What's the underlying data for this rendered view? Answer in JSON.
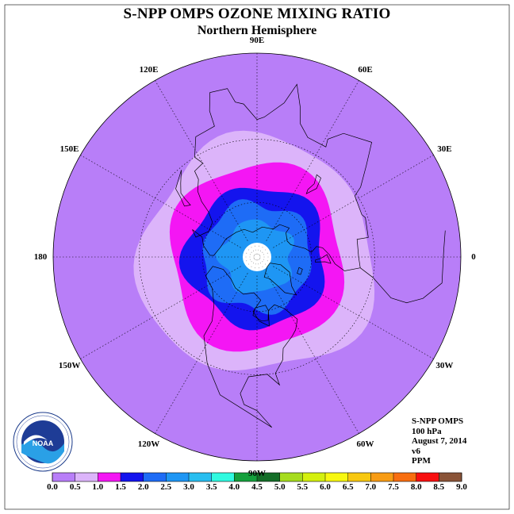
{
  "title": "S-NPP OMPS OZONE MIXING RATIO",
  "subtitle": "Northern Hemisphere",
  "longitude_labels": [
    {
      "text": "90E",
      "lon": 90
    },
    {
      "text": "60E",
      "lon": 60
    },
    {
      "text": "30E",
      "lon": 30
    },
    {
      "text": "0",
      "lon": 0
    },
    {
      "text": "30W",
      "lon": -30
    },
    {
      "text": "60W",
      "lon": -60
    },
    {
      "text": "90W",
      "lon": -90
    },
    {
      "text": "120W",
      "lon": -120
    },
    {
      "text": "150W",
      "lon": -150
    },
    {
      "text": "180",
      "lon": 180
    },
    {
      "text": "150E",
      "lon": 150
    },
    {
      "text": "120E",
      "lon": 120
    }
  ],
  "info": {
    "instrument": "S-NPP OMPS",
    "level": "100 hPa",
    "date": "August 7, 2014",
    "version": "v6",
    "units": "PPM"
  },
  "logo_text": "NOAA",
  "colorbar": {
    "ticks": [
      "0.0",
      "0.5",
      "1.0",
      "1.5",
      "2.0",
      "2.5",
      "3.0",
      "3.5",
      "4.0",
      "4.5",
      "5.0",
      "5.5",
      "6.0",
      "6.5",
      "7.0",
      "7.5",
      "8.0",
      "8.5",
      "9.0"
    ],
    "colors": [
      "#b87ef8",
      "#dcb4fa",
      "#f416f4",
      "#1414ee",
      "#1e6cf6",
      "#1e96f4",
      "#28bef0",
      "#30fae0",
      "#14a03c",
      "#146e28",
      "#a6dc1e",
      "#d4f00e",
      "#f8f810",
      "#f8c810",
      "#f89c14",
      "#f86e10",
      "#f81010",
      "#8a5438"
    ]
  },
  "chart_data": {
    "type": "heatmap",
    "title": "S-NPP OMPS OZONE MIXING RATIO",
    "subtitle": "Northern Hemisphere",
    "projection": "north polar stereographic",
    "units": "PPM",
    "level": "100 hPa",
    "date": "August 7, 2014",
    "bins": [
      0.0,
      0.5,
      1.0,
      1.5,
      2.0,
      2.5,
      3.0,
      3.5,
      4.0,
      4.5,
      5.0,
      5.5,
      6.0,
      6.5,
      7.0,
      7.5,
      8.0,
      8.5,
      9.0
    ],
    "zones": [
      {
        "range": "0.0-0.5",
        "color": "#b87ef8",
        "approx_lat_min": 0,
        "approx_lat_max": 30
      },
      {
        "range": "0.5-1.0",
        "color": "#dcb4fa",
        "approx_lat_min": 30,
        "approx_lat_max": 42
      },
      {
        "range": "1.0-1.5",
        "color": "#f416f4",
        "approx_lat_min": 42,
        "approx_lat_max": 52
      },
      {
        "range": "1.5-2.0",
        "color": "#1414ee",
        "approx_lat_min": 52,
        "approx_lat_max": 60
      },
      {
        "range": "2.0-2.5",
        "color": "#1e6cf6",
        "approx_lat_min": 60,
        "approx_lat_max": 70
      },
      {
        "range": "2.5-3.0",
        "color": "#1e96f4",
        "approx_lat_min": 70,
        "approx_lat_max": 82
      }
    ],
    "no_data_lat_min": 82
  }
}
